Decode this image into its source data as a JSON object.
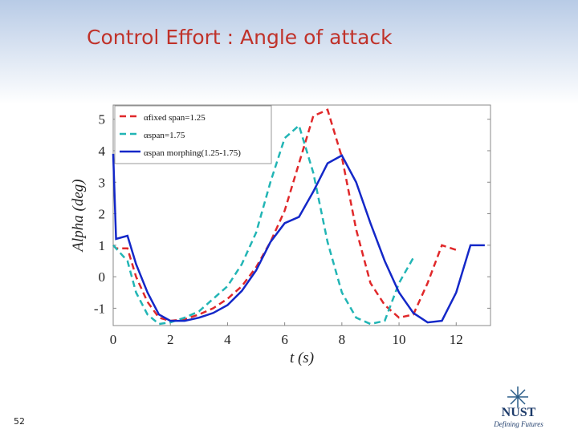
{
  "slide": {
    "title": "Control Effort  : Angle of attack",
    "number": "52",
    "logo": {
      "name": "NUST",
      "tagline": "Defining Futures"
    }
  },
  "chart_data": {
    "type": "line",
    "x": [
      0,
      0.1,
      0.5,
      0.8,
      1.2,
      1.6,
      2,
      2.5,
      3,
      3.5,
      4,
      4.5,
      5,
      5.5,
      6,
      6.5,
      7,
      7.5,
      8,
      8.5,
      9,
      9.5,
      10,
      10.5,
      11,
      11.5,
      12,
      12.5,
      13
    ],
    "series": [
      {
        "name": "αfixed span=1.25",
        "color": "#e0282a",
        "dash": true,
        "values": [
          1.0,
          0.9,
          0.9,
          0.0,
          -0.8,
          -1.3,
          -1.4,
          -1.35,
          -1.2,
          -1.0,
          -0.7,
          -0.3,
          0.3,
          1.1,
          2.1,
          3.6,
          5.1,
          5.3,
          3.8,
          1.5,
          -0.2,
          -0.9,
          -1.3,
          -1.2,
          -0.2,
          1.0,
          0.85,
          null,
          null
        ]
      },
      {
        "name": "αspan=1.75",
        "color": "#22b5b5",
        "dash": true,
        "values": [
          1.0,
          0.9,
          0.5,
          -0.5,
          -1.2,
          -1.5,
          -1.45,
          -1.3,
          -1.1,
          -0.7,
          -0.3,
          0.4,
          1.4,
          3.0,
          4.4,
          4.8,
          3.3,
          1.1,
          -0.5,
          -1.3,
          -1.5,
          -1.4,
          -0.2,
          0.6,
          null,
          null,
          null,
          null,
          null
        ]
      },
      {
        "name": "αspan morphing(1.25-1.75)",
        "color": "#1428c8",
        "dash": false,
        "values": [
          3.9,
          1.2,
          1.3,
          0.4,
          -0.5,
          -1.2,
          -1.4,
          -1.4,
          -1.3,
          -1.15,
          -0.9,
          -0.45,
          0.2,
          1.1,
          1.7,
          1.9,
          2.7,
          3.6,
          3.85,
          3.0,
          1.7,
          0.5,
          -0.5,
          -1.15,
          -1.45,
          -1.4,
          -0.5,
          1.0,
          1.0
        ]
      }
    ],
    "xlabel": "t (s)",
    "ylabel": "Alpha (deg)",
    "xlim": [
      0,
      13.2
    ],
    "xticks": [
      0,
      2,
      4,
      6,
      8,
      10,
      12
    ],
    "ylim": [
      -1.55,
      5.45
    ],
    "yticks": [
      -1,
      0,
      1,
      2,
      3,
      4,
      5
    ],
    "legend": "upper-left"
  }
}
